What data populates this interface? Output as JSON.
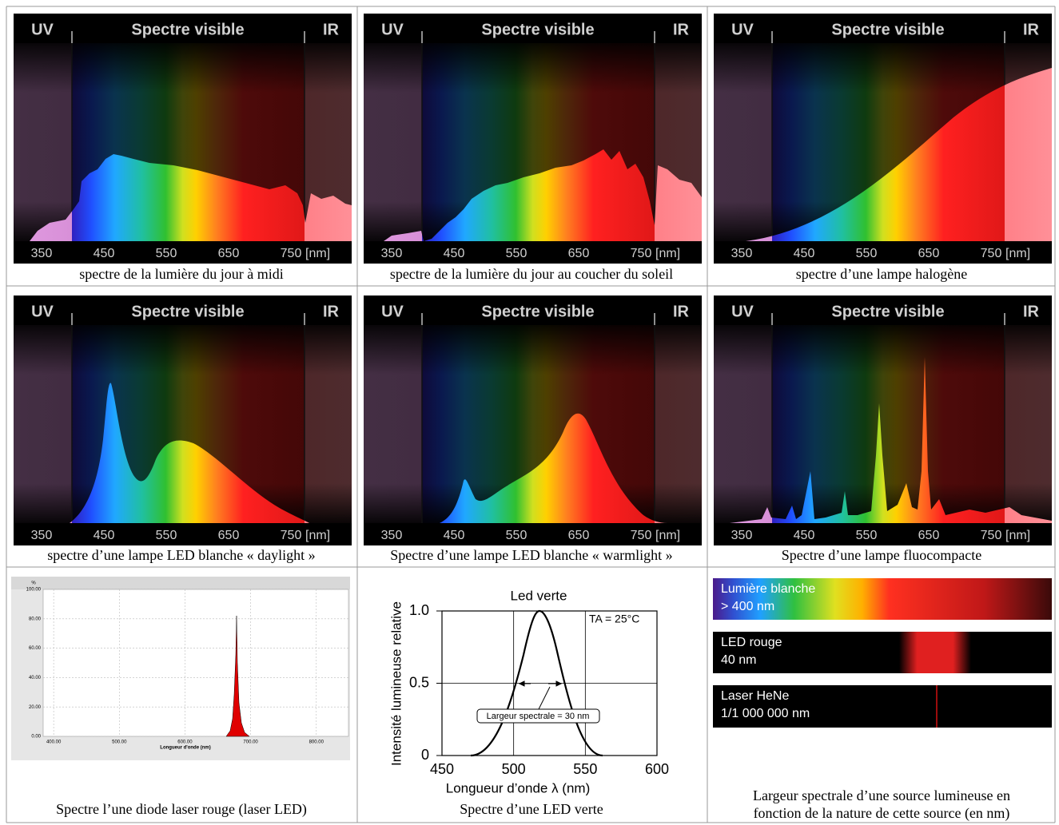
{
  "panels": [
    {
      "uv": "UV",
      "visible": "Spectre visible",
      "ir": "IR",
      "ticks": [
        350,
        450,
        550,
        650,
        750
      ],
      "unit": "[nm]",
      "caption": "spectre de la lumière du jour à midi"
    },
    {
      "uv": "UV",
      "visible": "Spectre visible",
      "ir": "IR",
      "ticks": [
        350,
        450,
        550,
        650,
        750
      ],
      "unit": "[nm]",
      "caption": "spectre de la lumière du jour au coucher du soleil"
    },
    {
      "uv": "UV",
      "visible": "Spectre visible",
      "ir": "IR",
      "ticks": [
        350,
        450,
        550,
        650,
        750
      ],
      "unit": "[nm]",
      "caption": "spectre d’une lampe halogène"
    },
    {
      "uv": "UV",
      "visible": "Spectre visible",
      "ir": "IR",
      "ticks": [
        350,
        450,
        550,
        650,
        750
      ],
      "unit": "[nm]",
      "caption": "spectre d’une lampe LED blanche « daylight »"
    },
    {
      "uv": "UV",
      "visible": "Spectre visible",
      "ir": "IR",
      "ticks": [
        350,
        450,
        550,
        650,
        750
      ],
      "unit": "[nm]",
      "caption": "Spectre d’une lampe LED blanche « warmlight »"
    },
    {
      "uv": "UV",
      "visible": "Spectre visible",
      "ir": "IR",
      "ticks": [
        350,
        450,
        550,
        650,
        750
      ],
      "unit": "[nm]",
      "caption": "Spectre d’une lampe fluocompacte"
    }
  ],
  "laser_chart": {
    "y_unit": "%",
    "x_label": "Longueur d'onde (nm)",
    "xlim": [
      384,
      849
    ],
    "ylim": [
      0,
      100
    ],
    "xticks": [
      {
        "value": 400,
        "label": "400.00"
      },
      {
        "value": 500,
        "label": "500.00"
      },
      {
        "value": 600,
        "label": "600.00"
      },
      {
        "value": 700,
        "label": "700.00"
      },
      {
        "value": 800,
        "label": "800.00"
      }
    ],
    "yticks": [
      {
        "value": 0,
        "label": "0.00"
      },
      {
        "value": 20,
        "label": "20.00"
      },
      {
        "value": 40,
        "label": "40.00"
      },
      {
        "value": 60,
        "label": "60.00"
      },
      {
        "value": 80,
        "label": "80.00"
      },
      {
        "value": 100,
        "label": "100.00"
      }
    ],
    "caption": "Spectre l’une diode laser rouge (laser LED)"
  },
  "led_chart": {
    "title": "Led verte",
    "y_label": "Intensité lumineuse relative",
    "x_label": "Longueur d’onde  λ  (nm)",
    "xlim": [
      450,
      600
    ],
    "ylim": [
      0,
      1
    ],
    "xticks": [
      450,
      500,
      550,
      600
    ],
    "yticks": [
      0,
      0.5,
      {
        "value": 1,
        "label": "1.0"
      }
    ],
    "condition": "TA = 25°C",
    "annotation": "Largeur spectrale = 30 nm",
    "caption": "Spectre d’une LED verte"
  },
  "bandwidth": {
    "bars": [
      {
        "name": "Lumière blanche",
        "width": "> 400 nm"
      },
      {
        "name": "LED rouge",
        "width": "40 nm"
      },
      {
        "name": "Laser HeNe",
        "width": "1/1 000 000 nm"
      }
    ],
    "caption": [
      "Largeur spectrale d’une source lumineuse en",
      "fonction de la nature de cette source (en nm)"
    ]
  }
}
